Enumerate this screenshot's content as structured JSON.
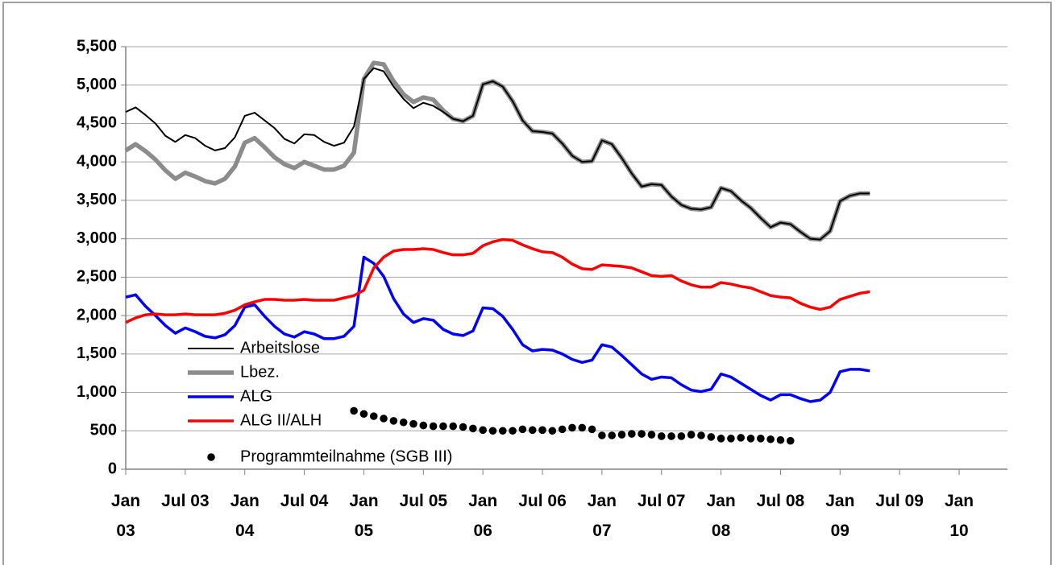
{
  "chart_data": {
    "type": "line",
    "categories": [
      "Jan 03",
      null,
      null,
      null,
      null,
      null,
      "Jul 03",
      null,
      null,
      null,
      null,
      null,
      "Jan 04",
      null,
      null,
      null,
      null,
      null,
      "Jul 04",
      null,
      null,
      null,
      null,
      null,
      "Jan 05",
      null,
      null,
      null,
      null,
      null,
      "Jul 05",
      null,
      null,
      null,
      null,
      null,
      "Jan 06",
      null,
      null,
      null,
      null,
      null,
      "Jul 06",
      null,
      null,
      null,
      null,
      null,
      "Jan 07",
      null,
      null,
      null,
      null,
      null,
      "Jul 07",
      null,
      null,
      null,
      null,
      null,
      "Jan 08",
      null,
      null,
      null,
      null,
      null,
      "Jul 08",
      null,
      null,
      null,
      null,
      null,
      "Jan 09",
      null,
      null,
      null,
      null,
      null,
      "Jul 09",
      null,
      null,
      null,
      null,
      null,
      "Jan 10"
    ],
    "series": [
      {
        "name": "Arbeitslose",
        "color": "#000000",
        "mode": "line",
        "values": [
          4650,
          4710,
          4610,
          4500,
          4340,
          4260,
          4350,
          4310,
          4210,
          4150,
          4180,
          4320,
          4600,
          4640,
          4540,
          4440,
          4300,
          4240,
          4360,
          4350,
          4260,
          4210,
          4250,
          4460,
          5080,
          5220,
          5180,
          4980,
          4820,
          4700,
          4770,
          4730,
          4650,
          4560,
          4530,
          4600,
          5010,
          5050,
          4980,
          4790,
          4540,
          4400,
          4390,
          4370,
          4240,
          4080,
          4000,
          4010,
          4280,
          4230,
          4050,
          3850,
          3680,
          3710,
          3700,
          3550,
          3440,
          3390,
          3380,
          3410,
          3660,
          3620,
          3500,
          3400,
          3270,
          3150,
          3210,
          3190,
          3090,
          3000,
          2990,
          3100,
          3490,
          3560,
          3590,
          3590,
          null,
          null,
          null,
          null,
          null,
          null,
          null,
          null,
          null
        ]
      },
      {
        "name": "Lbez.",
        "color": "#8c8c8c",
        "mode": "line",
        "values": [
          4150,
          4230,
          4140,
          4030,
          3890,
          3780,
          3860,
          3810,
          3750,
          3720,
          3780,
          3940,
          4250,
          4310,
          4190,
          4060,
          3970,
          3920,
          4000,
          3950,
          3900,
          3900,
          3950,
          4120,
          5080,
          5290,
          5270,
          5050,
          4880,
          4780,
          4840,
          4810,
          4670,
          4560,
          4530,
          4600,
          5010,
          5050,
          4980,
          4790,
          4540,
          4400,
          4390,
          4370,
          4240,
          4080,
          4000,
          4010,
          4280,
          4230,
          4050,
          3850,
          3680,
          3710,
          3700,
          3550,
          3440,
          3390,
          3380,
          3410,
          3660,
          3620,
          3500,
          3400,
          3270,
          3150,
          3210,
          3190,
          3090,
          3000,
          2990,
          3100,
          3490,
          3560,
          3590,
          3590,
          null,
          null,
          null,
          null,
          null,
          null,
          null,
          null,
          null
        ]
      },
      {
        "name": "ALG",
        "color": "#0000ff",
        "mode": "line",
        "values": [
          2240,
          2270,
          2120,
          2000,
          1870,
          1770,
          1840,
          1790,
          1730,
          1710,
          1750,
          1870,
          2110,
          2140,
          1990,
          1860,
          1760,
          1720,
          1790,
          1760,
          1700,
          1700,
          1730,
          1860,
          2760,
          2680,
          2510,
          2220,
          2020,
          1910,
          1960,
          1940,
          1820,
          1760,
          1740,
          1800,
          2100,
          2090,
          1990,
          1820,
          1620,
          1540,
          1560,
          1550,
          1500,
          1430,
          1390,
          1420,
          1620,
          1590,
          1480,
          1360,
          1240,
          1170,
          1200,
          1190,
          1100,
          1030,
          1010,
          1040,
          1240,
          1200,
          1120,
          1040,
          960,
          900,
          970,
          970,
          920,
          880,
          900,
          1000,
          1270,
          1300,
          1300,
          1280,
          null,
          null,
          null,
          null,
          null,
          null,
          null,
          null,
          null
        ]
      },
      {
        "name": "ALG II/ALH",
        "color": "#ff0000",
        "mode": "line",
        "values": [
          1910,
          1970,
          2010,
          2020,
          2010,
          2010,
          2020,
          2010,
          2010,
          2010,
          2030,
          2070,
          2140,
          2180,
          2210,
          2210,
          2200,
          2200,
          2210,
          2200,
          2200,
          2200,
          2230,
          2260,
          2330,
          2620,
          2760,
          2840,
          2860,
          2860,
          2870,
          2860,
          2820,
          2790,
          2790,
          2810,
          2910,
          2960,
          2990,
          2980,
          2920,
          2870,
          2830,
          2820,
          2760,
          2670,
          2610,
          2600,
          2660,
          2650,
          2640,
          2620,
          2570,
          2520,
          2510,
          2520,
          2450,
          2400,
          2370,
          2370,
          2430,
          2410,
          2380,
          2360,
          2310,
          2260,
          2240,
          2230,
          2160,
          2110,
          2080,
          2110,
          2210,
          2250,
          2290,
          2310,
          null,
          null,
          null,
          null,
          null,
          null,
          null,
          null,
          null
        ]
      },
      {
        "name": "Programmteilnahme (SGB III)",
        "color": "#000000",
        "mode": "markers",
        "values": [
          null,
          null,
          null,
          null,
          null,
          null,
          null,
          null,
          null,
          null,
          null,
          null,
          null,
          null,
          null,
          null,
          null,
          null,
          null,
          null,
          null,
          null,
          null,
          760,
          720,
          690,
          660,
          630,
          610,
          590,
          570,
          560,
          560,
          560,
          550,
          530,
          510,
          500,
          500,
          500,
          520,
          510,
          510,
          500,
          520,
          540,
          540,
          520,
          440,
          440,
          450,
          460,
          460,
          450,
          430,
          430,
          430,
          450,
          440,
          420,
          400,
          400,
          410,
          400,
          400,
          390,
          380,
          370,
          null,
          null,
          null,
          null,
          null,
          null,
          null,
          null,
          null,
          null,
          null,
          null,
          null,
          null,
          null,
          null,
          null
        ]
      }
    ],
    "ylim": [
      0,
      5500
    ],
    "yticks": [
      0,
      500,
      {
        "value": 1000,
        "label": "1,000"
      },
      {
        "value": 1500,
        "label": "1,500"
      },
      {
        "value": 2000,
        "label": "2,000"
      },
      {
        "value": 2500,
        "label": "2,500"
      },
      {
        "value": 3000,
        "label": "3,000"
      },
      {
        "value": 3500,
        "label": "3,500"
      },
      {
        "value": 4000,
        "label": "4,000"
      },
      {
        "value": 4500,
        "label": "4,500"
      },
      {
        "value": 5000,
        "label": "5,000"
      },
      {
        "value": 5500,
        "label": "5,500"
      }
    ],
    "grid": true,
    "legend": "lower left"
  }
}
